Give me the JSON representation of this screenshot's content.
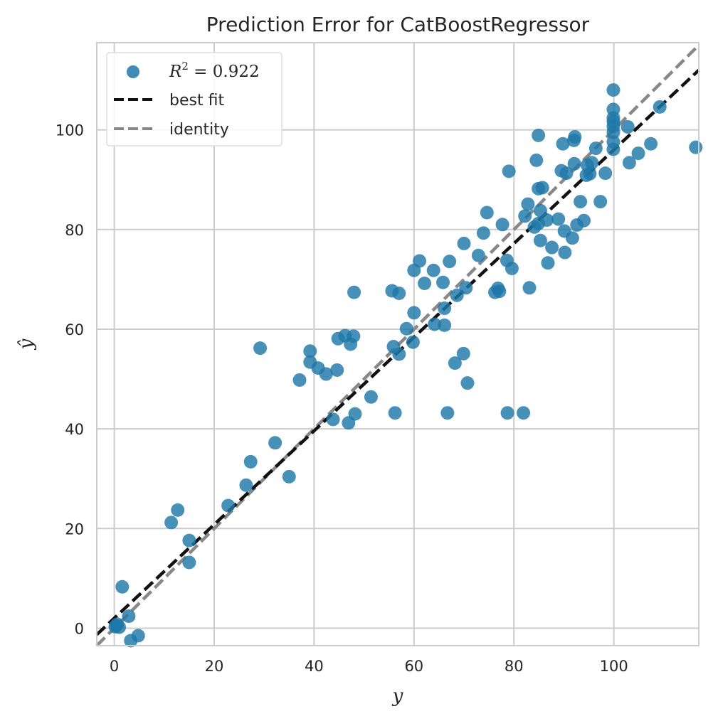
{
  "chart_data": {
    "type": "scatter",
    "title": "Prediction Error for CatBoostRegressor",
    "xlabel": "y",
    "ylabel": "ŷ",
    "xlim": [
      -3.5,
      117
    ],
    "ylim": [
      -3.5,
      117.5
    ],
    "xticks": [
      0,
      20,
      40,
      60,
      80,
      100
    ],
    "yticks": [
      0,
      20,
      40,
      60,
      80,
      100
    ],
    "grid": true,
    "legend_position": "top-left",
    "legend": {
      "r2_label": "R",
      "r2_sup": "2",
      "r2_value": " = 0.922",
      "best_fit_label": "best fit",
      "identity_label": "identity"
    },
    "colors": {
      "points": "#1f77a8",
      "best_fit": "#111111",
      "identity": "#888888",
      "grid": "#cccccc",
      "frame": "#cccccc"
    },
    "best_fit": {
      "slope": 0.94,
      "intercept": 2.0
    },
    "identity": {
      "slope": 1.0,
      "intercept": 0.0
    },
    "points": [
      [
        0.2,
        0.3
      ],
      [
        0.6,
        0.8
      ],
      [
        1.0,
        0.2
      ],
      [
        0.4,
        0.5
      ],
      [
        1.6,
        8.3
      ],
      [
        2.9,
        2.4
      ],
      [
        3.3,
        -2.5
      ],
      [
        4.8,
        -1.5
      ],
      [
        11.4,
        21.2
      ],
      [
        12.7,
        23.7
      ],
      [
        15.0,
        17.6
      ],
      [
        15.0,
        13.2
      ],
      [
        22.8,
        24.6
      ],
      [
        26.4,
        28.7
      ],
      [
        27.3,
        33.4
      ],
      [
        29.2,
        56.2
      ],
      [
        32.2,
        37.2
      ],
      [
        35.0,
        30.4
      ],
      [
        37.1,
        49.8
      ],
      [
        39.2,
        55.6
      ],
      [
        39.2,
        53.4
      ],
      [
        40.8,
        52.2
      ],
      [
        42.4,
        51.0
      ],
      [
        43.8,
        41.9
      ],
      [
        44.8,
        58.1
      ],
      [
        44.6,
        51.8
      ],
      [
        46.2,
        58.7
      ],
      [
        46.9,
        41.2
      ],
      [
        47.3,
        57.0
      ],
      [
        47.9,
        58.6
      ],
      [
        48.2,
        43.0
      ],
      [
        48.0,
        67.4
      ],
      [
        51.4,
        46.4
      ],
      [
        55.6,
        67.7
      ],
      [
        55.9,
        56.5
      ],
      [
        56.2,
        43.2
      ],
      [
        57.0,
        55.0
      ],
      [
        57.0,
        67.2
      ],
      [
        58.5,
        60.1
      ],
      [
        59.8,
        57.4
      ],
      [
        60.0,
        63.3
      ],
      [
        60.0,
        71.8
      ],
      [
        61.1,
        73.7
      ],
      [
        62.1,
        69.2
      ],
      [
        63.9,
        71.8
      ],
      [
        64.1,
        61.0
      ],
      [
        65.8,
        69.4
      ],
      [
        66.1,
        64.2
      ],
      [
        66.1,
        60.8
      ],
      [
        66.7,
        43.2
      ],
      [
        67.1,
        73.6
      ],
      [
        68.2,
        53.2
      ],
      [
        68.6,
        66.8
      ],
      [
        69.9,
        55.1
      ],
      [
        70.0,
        77.2
      ],
      [
        70.4,
        68.3
      ],
      [
        70.7,
        49.2
      ],
      [
        72.9,
        74.8
      ],
      [
        73.9,
        79.3
      ],
      [
        74.6,
        83.4
      ],
      [
        76.2,
        67.4
      ],
      [
        76.8,
        68.2
      ],
      [
        77.1,
        67.6
      ],
      [
        77.7,
        81.0
      ],
      [
        78.6,
        73.8
      ],
      [
        78.7,
        43.2
      ],
      [
        79.0,
        91.7
      ],
      [
        79.6,
        72.2
      ],
      [
        81.9,
        43.2
      ],
      [
        82.2,
        82.7
      ],
      [
        82.8,
        85.1
      ],
      [
        83.1,
        68.3
      ],
      [
        84.1,
        80.5
      ],
      [
        84.5,
        93.9
      ],
      [
        84.9,
        98.9
      ],
      [
        84.9,
        88.2
      ],
      [
        84.9,
        81.2
      ],
      [
        85.3,
        77.8
      ],
      [
        85.3,
        83.8
      ],
      [
        85.7,
        88.4
      ],
      [
        86.6,
        81.9
      ],
      [
        86.8,
        73.3
      ],
      [
        87.6,
        76.4
      ],
      [
        88.9,
        82.1
      ],
      [
        89.5,
        91.8
      ],
      [
        89.8,
        97.2
      ],
      [
        90.1,
        79.7
      ],
      [
        90.2,
        75.4
      ],
      [
        90.5,
        91.3
      ],
      [
        91.7,
        78.3
      ],
      [
        92.0,
        97.9
      ],
      [
        92.2,
        98.6
      ],
      [
        92.1,
        93.2
      ],
      [
        92.6,
        80.9
      ],
      [
        93.3,
        85.6
      ],
      [
        94.0,
        81.8
      ],
      [
        94.5,
        90.9
      ],
      [
        94.7,
        92.9
      ],
      [
        95.2,
        91.2
      ],
      [
        95.6,
        93.4
      ],
      [
        96.4,
        96.3
      ],
      [
        97.3,
        85.6
      ],
      [
        98.3,
        91.3
      ],
      [
        99.9,
        108.0
      ],
      [
        99.9,
        104.1
      ],
      [
        99.9,
        102.4
      ],
      [
        99.9,
        101.7
      ],
      [
        99.9,
        100.7
      ],
      [
        99.9,
        99.5
      ],
      [
        99.9,
        97.6
      ],
      [
        99.9,
        96.1
      ],
      [
        102.8,
        100.6
      ],
      [
        103.1,
        93.4
      ],
      [
        104.9,
        95.3
      ],
      [
        107.4,
        97.2
      ],
      [
        109.2,
        104.6
      ],
      [
        116.4,
        96.5
      ]
    ]
  }
}
